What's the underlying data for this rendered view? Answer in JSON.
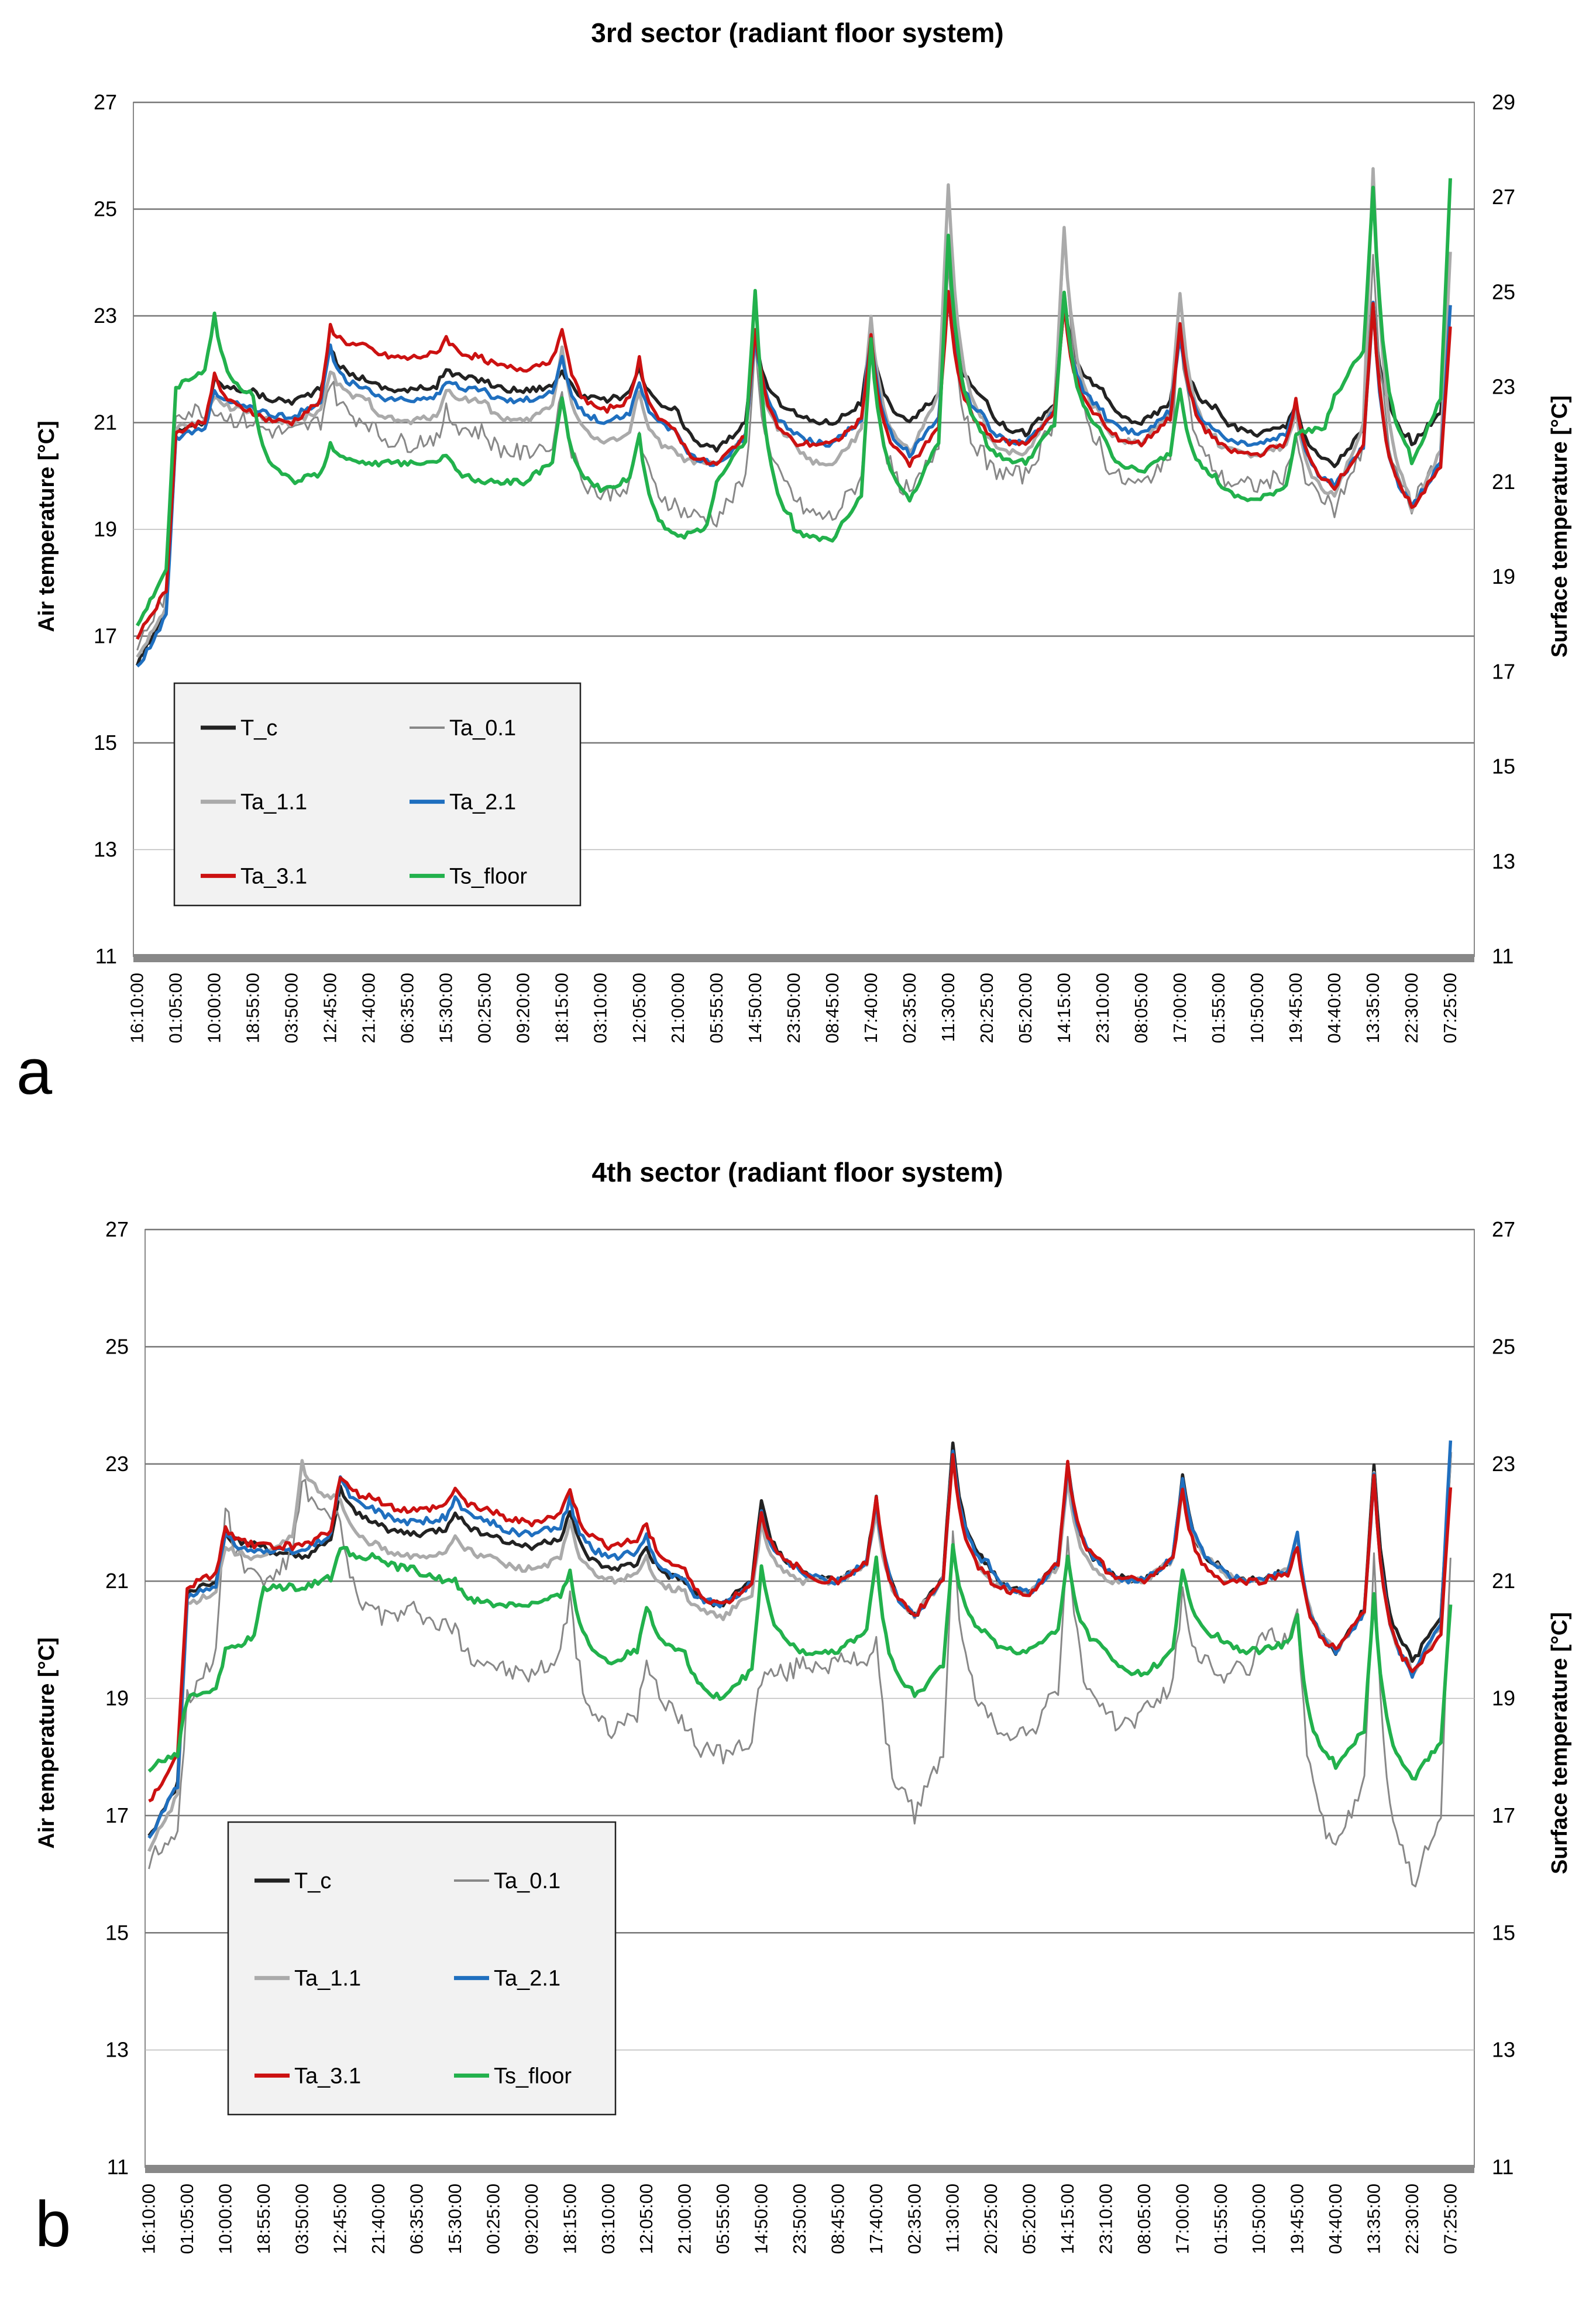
{
  "chart_data": [
    {
      "type": "line",
      "panel": "a",
      "title": "3rd sector (radiant floor system)",
      "ylabel": "Air temperature [°C]",
      "y2label": "Surface temperature [°C]",
      "ylim": [
        11,
        27
      ],
      "y2lim": [
        11,
        29
      ],
      "yticks": [
        "11",
        "13",
        "15",
        "17",
        "19",
        "21",
        "23",
        "25",
        "27"
      ],
      "y2ticks": [
        "11",
        "13",
        "15",
        "17",
        "19",
        "21",
        "23",
        "25",
        "27",
        "29"
      ],
      "legend_placement": "bottom-left",
      "grid": true,
      "x": [
        "16:10:00",
        "01:05:00",
        "10:00:00",
        "18:55:00",
        "03:50:00",
        "12:45:00",
        "21:40:00",
        "06:35:00",
        "15:30:00",
        "00:25:00",
        "09:20:00",
        "18:15:00",
        "03:10:00",
        "12:05:00",
        "21:00:00",
        "05:55:00",
        "14:50:00",
        "23:50:00",
        "08:45:00",
        "17:40:00",
        "02:35:00",
        "11:30:00",
        "20:25:00",
        "05:20:00",
        "14:15:00",
        "23:10:00",
        "08:05:00",
        "17:00:00",
        "01:55:00",
        "10:50:00",
        "19:45:00",
        "04:40:00",
        "13:35:00",
        "22:30:00",
        "07:25:00"
      ],
      "series": [
        {
          "name": "T_c",
          "color": "#222222",
          "axis": "left",
          "values": [
            16.5,
            20.8,
            21.8,
            21.6,
            21.4,
            22.4,
            21.8,
            21.6,
            22.0,
            21.8,
            21.6,
            22.0,
            21.4,
            22.0,
            21.2,
            20.5,
            22.6,
            21.2,
            21.0,
            22.6,
            21.0,
            23.4,
            21.4,
            20.8,
            23.2,
            21.6,
            21.0,
            22.6,
            21.2,
            20.8,
            21.4,
            20.2,
            23.2,
            20.6,
            23.2
          ]
        },
        {
          "name": "Ta_0.1",
          "color": "#888888",
          "axis": "left",
          "values": [
            16.8,
            21.2,
            21.3,
            21.0,
            20.8,
            21.8,
            21.0,
            20.6,
            21.2,
            20.8,
            20.4,
            21.6,
            19.6,
            20.8,
            19.4,
            19.2,
            22.4,
            19.6,
            19.2,
            22.6,
            19.6,
            24.0,
            20.2,
            20.0,
            24.6,
            20.4,
            19.8,
            22.8,
            20.0,
            19.8,
            20.8,
            19.4,
            24.2,
            19.4,
            24.0
          ]
        },
        {
          "name": "Ta_1.1",
          "color": "#aaaaaa",
          "axis": "left",
          "values": [
            16.6,
            20.9,
            21.5,
            21.2,
            21.0,
            22.0,
            21.4,
            21.0,
            21.6,
            21.4,
            21.0,
            22.4,
            20.6,
            21.6,
            20.4,
            20.2,
            22.6,
            20.6,
            20.2,
            23.0,
            20.4,
            25.4,
            20.8,
            20.4,
            24.6,
            21.0,
            20.6,
            23.4,
            20.6,
            20.4,
            21.2,
            19.6,
            25.8,
            19.4,
            24.2
          ]
        },
        {
          "name": "Ta_2.1",
          "color": "#1f6fbf",
          "axis": "left",
          "values": [
            16.4,
            20.7,
            21.6,
            21.3,
            21.1,
            22.4,
            21.6,
            21.4,
            21.8,
            21.6,
            21.4,
            22.2,
            21.0,
            21.8,
            20.8,
            20.2,
            22.6,
            20.8,
            20.6,
            22.6,
            20.4,
            23.4,
            21.0,
            20.6,
            23.2,
            21.2,
            20.8,
            22.6,
            20.8,
            20.6,
            21.4,
            19.8,
            23.2,
            19.4,
            23.2
          ]
        },
        {
          "name": "Ta_3.1",
          "color": "#cc1111",
          "axis": "left",
          "values": [
            17.0,
            20.8,
            21.9,
            21.2,
            21.0,
            22.8,
            22.4,
            22.2,
            22.6,
            22.2,
            22.0,
            22.8,
            21.2,
            22.2,
            20.8,
            20.2,
            22.8,
            20.6,
            20.6,
            22.6,
            20.2,
            23.4,
            20.8,
            20.6,
            23.2,
            21.0,
            20.6,
            22.8,
            20.6,
            20.4,
            21.4,
            19.8,
            23.2,
            19.4,
            22.8
          ]
        },
        {
          "name": "Ts_floor",
          "color": "#22b14c",
          "axis": "right",
          "values": [
            18.0,
            23.0,
            24.5,
            22.8,
            21.0,
            21.8,
            21.4,
            21.4,
            21.6,
            21.0,
            21.0,
            22.8,
            20.8,
            22.0,
            19.8,
            21.0,
            25.0,
            20.0,
            19.8,
            24.0,
            20.6,
            26.2,
            21.8,
            21.4,
            25.0,
            22.0,
            21.2,
            23.0,
            21.0,
            20.6,
            22.0,
            22.8,
            27.2,
            21.4,
            27.4
          ]
        }
      ]
    },
    {
      "type": "line",
      "panel": "b",
      "title": "4th sector (radiant floor system)",
      "ylabel": "Air temperature [°C]",
      "y2label": "Surface temperature [°C]",
      "ylim": [
        11,
        27
      ],
      "y2lim": [
        11,
        27
      ],
      "yticks": [
        "11",
        "13",
        "15",
        "17",
        "19",
        "21",
        "23",
        "25",
        "27"
      ],
      "y2ticks": [
        "11",
        "13",
        "15",
        "17",
        "19",
        "21",
        "23",
        "25",
        "27"
      ],
      "legend_placement": "bottom-left",
      "grid": true,
      "x": [
        "16:10:00",
        "01:05:00",
        "10:00:00",
        "18:55:00",
        "03:50:00",
        "12:45:00",
        "21:40:00",
        "06:35:00",
        "15:30:00",
        "00:25:00",
        "09:20:00",
        "18:15:00",
        "03:10:00",
        "12:05:00",
        "21:00:00",
        "05:55:00",
        "14:50:00",
        "23:50:00",
        "08:45:00",
        "17:40:00",
        "02:35:00",
        "11:30:00",
        "20:25:00",
        "05:20:00",
        "14:15:00",
        "23:10:00",
        "08:05:00",
        "17:00:00",
        "01:55:00",
        "10:50:00",
        "19:45:00",
        "04:40:00",
        "13:35:00",
        "22:30:00",
        "07:25:00"
      ],
      "series": [
        {
          "name": "T_c",
          "color": "#222222",
          "axis": "left",
          "values": [
            16.6,
            20.8,
            21.8,
            21.6,
            21.4,
            22.6,
            22.0,
            21.8,
            22.2,
            21.8,
            21.6,
            22.2,
            21.2,
            21.6,
            21.0,
            20.6,
            22.4,
            21.2,
            21.0,
            22.4,
            20.4,
            23.4,
            21.2,
            20.8,
            23.0,
            21.2,
            21.0,
            22.8,
            21.2,
            21.0,
            21.8,
            19.8,
            23.0,
            19.6,
            23.2
          ]
        },
        {
          "name": "Ta_0.1",
          "color": "#888888",
          "axis": "left",
          "values": [
            16.2,
            19.0,
            22.4,
            21.0,
            22.8,
            22.0,
            20.4,
            20.6,
            20.2,
            19.6,
            19.4,
            20.8,
            18.4,
            19.8,
            18.6,
            18.0,
            19.4,
            19.6,
            19.6,
            20.0,
            17.0,
            21.8,
            18.6,
            18.4,
            21.8,
            18.6,
            18.8,
            20.8,
            19.4,
            20.0,
            20.4,
            16.4,
            21.6,
            15.8,
            21.4
          ]
        },
        {
          "name": "Ta_1.1",
          "color": "#aaaaaa",
          "axis": "left",
          "values": [
            16.4,
            20.6,
            21.6,
            21.4,
            23.0,
            22.4,
            21.6,
            21.4,
            21.8,
            21.4,
            21.2,
            22.0,
            21.0,
            21.4,
            20.8,
            20.4,
            22.0,
            21.0,
            21.0,
            22.2,
            20.4,
            23.2,
            21.0,
            20.8,
            22.8,
            21.0,
            21.0,
            22.6,
            21.2,
            21.0,
            21.8,
            19.8,
            22.8,
            19.4,
            23.2
          ]
        },
        {
          "name": "Ta_2.1",
          "color": "#1f6fbf",
          "axis": "left",
          "values": [
            16.6,
            20.7,
            21.8,
            21.5,
            21.5,
            22.8,
            22.2,
            22.0,
            22.4,
            22.0,
            21.8,
            22.4,
            21.4,
            21.8,
            21.0,
            20.6,
            22.2,
            21.2,
            21.0,
            22.4,
            20.4,
            23.2,
            21.2,
            20.8,
            23.0,
            21.2,
            21.0,
            22.8,
            21.2,
            21.0,
            21.8,
            19.8,
            22.8,
            19.4,
            23.4
          ]
        },
        {
          "name": "Ta_3.1",
          "color": "#cc1111",
          "axis": "left",
          "values": [
            17.2,
            20.9,
            21.9,
            21.6,
            21.6,
            22.8,
            22.4,
            22.2,
            22.6,
            22.2,
            22.0,
            22.6,
            21.6,
            22.0,
            21.2,
            20.6,
            22.2,
            21.2,
            21.0,
            22.4,
            20.4,
            23.2,
            21.0,
            20.8,
            23.0,
            21.2,
            21.0,
            22.6,
            21.0,
            21.0,
            21.6,
            19.8,
            22.8,
            19.4,
            22.6
          ]
        },
        {
          "name": "Ts_floor",
          "color": "#22b14c",
          "axis": "right",
          "values": [
            17.8,
            19.0,
            19.8,
            20.9,
            20.9,
            21.6,
            21.4,
            21.2,
            21.0,
            20.6,
            20.6,
            21.2,
            19.6,
            20.6,
            19.8,
            19.0,
            21.2,
            19.8,
            19.8,
            21.4,
            19.0,
            21.6,
            20.0,
            19.8,
            21.4,
            19.8,
            19.4,
            21.2,
            20.0,
            19.8,
            20.4,
            17.8,
            20.8,
            17.6,
            20.6
          ]
        }
      ]
    }
  ],
  "legend": {
    "entries": [
      "T_c",
      "Ta_0.1",
      "Ta_1.1",
      "Ta_2.1",
      "Ta_3.1",
      "Ts_floor"
    ]
  },
  "panel_labels": [
    "a",
    "b"
  ]
}
